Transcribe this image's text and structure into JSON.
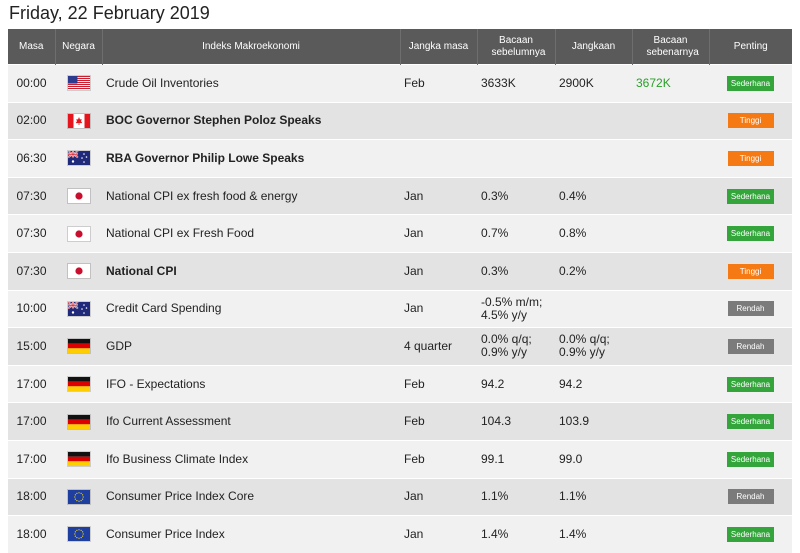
{
  "page_title": "Friday, 22 February 2019",
  "columns": {
    "time": "Masa",
    "country": "Negara",
    "event": "Indeks Makroekonomi",
    "period": "Jangka masa",
    "previous": "Bacaan sebelumnya",
    "forecast": "Jangkaan",
    "actual": "Bacaan sebenarnya",
    "importance": "Penting"
  },
  "colors": {
    "header_bg": "#5a5a5a",
    "row_odd": "#f1f1f1",
    "row_even": "#e3e3e3",
    "actual_text": "#2aa02a",
    "importance_low": "#33a53b",
    "importance_high": "#f57a14",
    "importance_grey": "#7b7b7b"
  },
  "rows": [
    {
      "time": "00:00",
      "flag": "us-flag-icon",
      "event": "Crude Oil Inventories",
      "bold": false,
      "period": "Feb",
      "previous": "3633K",
      "forecast": "2900K",
      "actual": "3672K",
      "importance": "Sederhana",
      "level": "low"
    },
    {
      "time": "02:00",
      "flag": "ca-flag-icon",
      "event": "BOC Governor Stephen Poloz Speaks",
      "bold": true,
      "period": "",
      "previous": "",
      "forecast": "",
      "actual": "",
      "importance": "Tinggi",
      "level": "high"
    },
    {
      "time": "06:30",
      "flag": "au-flag-icon",
      "event": "RBA Governor Philip Lowe Speaks",
      "bold": true,
      "period": "",
      "previous": "",
      "forecast": "",
      "actual": "",
      "importance": "Tinggi",
      "level": "high"
    },
    {
      "time": "07:30",
      "flag": "jp-flag-icon",
      "event": "National CPI ex fresh food & energy",
      "bold": false,
      "period": "Jan",
      "previous": "0.3%",
      "forecast": "0.4%",
      "actual": "",
      "importance": "Sederhana",
      "level": "low"
    },
    {
      "time": "07:30",
      "flag": "jp-flag-icon",
      "event": "National CPI ex Fresh Food",
      "bold": false,
      "period": "Jan",
      "previous": "0.7%",
      "forecast": "0.8%",
      "actual": "",
      "importance": "Sederhana",
      "level": "low"
    },
    {
      "time": "07:30",
      "flag": "jp-flag-icon",
      "event": "National CPI",
      "bold": true,
      "period": "Jan",
      "previous": "0.3%",
      "forecast": "0.2%",
      "actual": "",
      "importance": "Tinggi",
      "level": "high"
    },
    {
      "time": "10:00",
      "flag": "au-flag-icon",
      "event": "Credit Card Spending",
      "bold": false,
      "period": "Jan",
      "previous": [
        "-0.5% m/m;",
        "4.5% y/y"
      ],
      "forecast": "",
      "actual": "",
      "importance": "Rendah",
      "level": "grey"
    },
    {
      "time": "15:00",
      "flag": "de-flag-icon",
      "event": "GDP",
      "bold": false,
      "period": "4 quarter",
      "previous": [
        "0.0% q/q;",
        "0.9% y/y"
      ],
      "forecast": [
        "0.0% q/q;",
        "0.9% y/y"
      ],
      "actual": "",
      "importance": "Rendah",
      "level": "grey"
    },
    {
      "time": "17:00",
      "flag": "de-flag-icon",
      "event": "IFO - Expectations",
      "bold": false,
      "period": "Feb",
      "previous": "94.2",
      "forecast": "94.2",
      "actual": "",
      "importance": "Sederhana",
      "level": "low"
    },
    {
      "time": "17:00",
      "flag": "de-flag-icon",
      "event": "Ifo Current Assessment",
      "bold": false,
      "period": "Feb",
      "previous": "104.3",
      "forecast": "103.9",
      "actual": "",
      "importance": "Sederhana",
      "level": "low"
    },
    {
      "time": "17:00",
      "flag": "de-flag-icon",
      "event": "Ifo Business Climate Index",
      "bold": false,
      "period": "Feb",
      "previous": "99.1",
      "forecast": "99.0",
      "actual": "",
      "importance": "Sederhana",
      "level": "low"
    },
    {
      "time": "18:00",
      "flag": "eu-flag-icon",
      "event": "Consumer Price Index Core",
      "bold": false,
      "period": "Jan",
      "previous": "1.1%",
      "forecast": "1.1%",
      "actual": "",
      "importance": "Rendah",
      "level": "grey"
    },
    {
      "time": "18:00",
      "flag": "eu-flag-icon",
      "event": "Consumer Price Index",
      "bold": false,
      "period": "Jan",
      "previous": "1.4%",
      "forecast": "1.4%",
      "actual": "",
      "importance": "Sederhana",
      "level": "low"
    }
  ]
}
